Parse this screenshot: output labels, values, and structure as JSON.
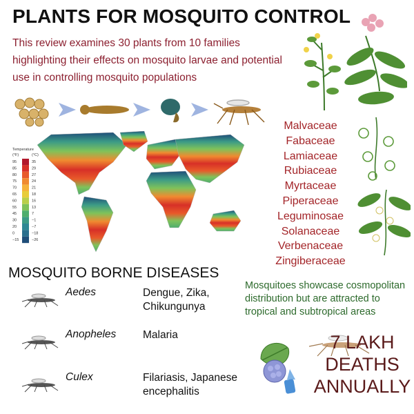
{
  "title": "PLANTS FOR MOSQUITO CONTROL",
  "intro": "This review examines 30 plants from 10 families highlighting their effects on mosquito larvae and potential use in controlling mosquito populations",
  "lifecycle_icons": [
    "eggs-icon",
    "larva-icon",
    "pupa-icon",
    "adult-mosquito-icon"
  ],
  "families": [
    "Malvaceae",
    "Fabaceae",
    "Lamiaceae",
    "Rubiaceae",
    "Myrtaceae",
    "Piperaceae",
    "Leguminosae",
    "Solanaceae",
    "Verbenaceae",
    "Zingiberaceae"
  ],
  "legend": {
    "title": "Temperature",
    "unit_f": "(°F)",
    "unit_c": "(°C)",
    "rows": [
      {
        "f": "95",
        "c": "35",
        "color": "#b2182b"
      },
      {
        "f": "85",
        "c": "29",
        "color": "#d73027"
      },
      {
        "f": "80",
        "c": "27",
        "color": "#e85a2a"
      },
      {
        "f": "75",
        "c": "24",
        "color": "#f08a30"
      },
      {
        "f": "70",
        "c": "21",
        "color": "#f6b23a"
      },
      {
        "f": "65",
        "c": "18",
        "color": "#e8cc3a"
      },
      {
        "f": "60",
        "c": "16",
        "color": "#b9cf4a"
      },
      {
        "f": "55",
        "c": "13",
        "color": "#7fc25a"
      },
      {
        "f": "45",
        "c": "7",
        "color": "#4fae6e"
      },
      {
        "f": "30",
        "c": "−1",
        "color": "#3c9b86"
      },
      {
        "f": "20",
        "c": "−7",
        "color": "#2e8894"
      },
      {
        "f": "0",
        "c": "−18",
        "color": "#2a6f8e"
      },
      {
        "f": "−15",
        "c": "−26",
        "color": "#1f4e79"
      }
    ]
  },
  "diseases": {
    "title": "MOSQUITO BORNE DISEASES",
    "rows": [
      {
        "genus": "Aedes",
        "disease": "Dengue, Zika, Chikungunya"
      },
      {
        "genus": "Anopheles",
        "disease": "Malaria"
      },
      {
        "genus": "Culex",
        "disease": "Filariasis, Japanese encephalitis"
      }
    ]
  },
  "distribution": "Mosquitoes showcase cosmopolitan distribution but are attracted to tropical and subtropical areas",
  "deaths": "7 LAKH DEATHS ANNUALLY",
  "colors": {
    "title": "#111111",
    "intro": "#8c2030",
    "families": "#a32428",
    "distribution": "#2d6a2c",
    "deaths": "#5a1a1a"
  }
}
